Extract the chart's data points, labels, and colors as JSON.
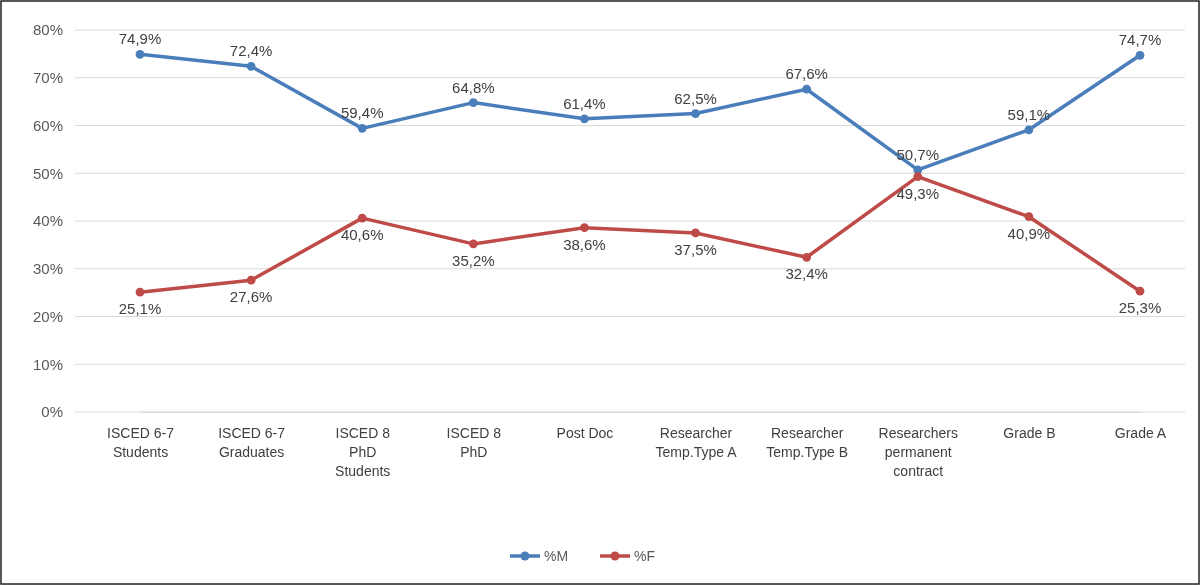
{
  "chart_data": {
    "type": "line",
    "categories": [
      "ISCED 6-7\nStudents",
      "ISCED 6-7\nGraduates",
      "ISCED 8\nPhD\nStudents",
      "ISCED 8\nPhD",
      "Post Doc",
      "Researcher\nTemp.Type A",
      "Researcher\nTemp.Type B",
      "Researchers\npermanent\ncontract",
      "Grade B",
      "Grade A"
    ],
    "series": [
      {
        "name": "%M",
        "color": "#4a7ebb",
        "values": [
          74.9,
          72.4,
          59.4,
          64.8,
          61.4,
          62.5,
          67.6,
          50.7,
          59.1,
          74.7
        ],
        "value_labels": [
          "74,9%",
          "72,4%",
          "59,4%",
          "64,8%",
          "61,4%",
          "62,5%",
          "67,6%",
          "50,7%",
          "59,1%",
          "74,7%"
        ]
      },
      {
        "name": "%F",
        "color": "#be4b48",
        "values": [
          25.1,
          27.6,
          40.6,
          35.2,
          38.6,
          37.5,
          32.4,
          49.3,
          40.9,
          25.3
        ],
        "value_labels": [
          "25,1%",
          "27,6%",
          "40,6%",
          "35,2%",
          "38,6%",
          "37,5%",
          "32,4%",
          "49,3%",
          "40,9%",
          "25,3%"
        ]
      }
    ],
    "ylim": [
      0,
      80
    ],
    "yticks": [
      {
        "value": 0,
        "label": "0%"
      },
      {
        "value": 10,
        "label": "10%"
      },
      {
        "value": 20,
        "label": "20%"
      },
      {
        "value": 30,
        "label": "30%"
      },
      {
        "value": 40,
        "label": "40%"
      },
      {
        "value": 50,
        "label": "50%"
      },
      {
        "value": 60,
        "label": "60%"
      },
      {
        "value": 70,
        "label": "70%"
      },
      {
        "value": 80,
        "label": "80%"
      }
    ],
    "grid": "y",
    "legend": "bottom",
    "marker": "circle",
    "line_style": "solid"
  }
}
